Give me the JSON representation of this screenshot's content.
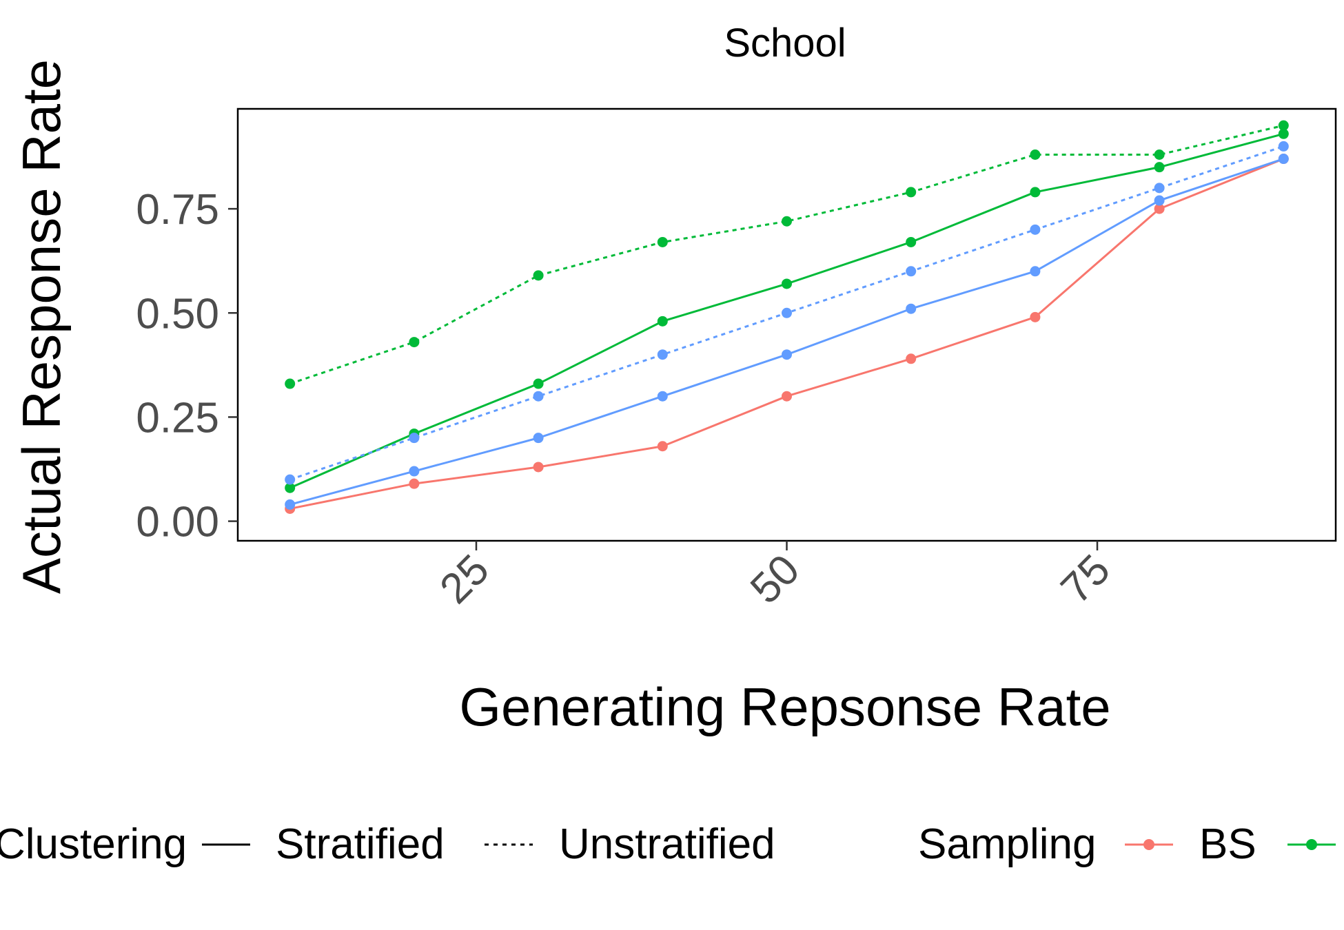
{
  "chart_data": {
    "type": "line",
    "title": "School",
    "xlabel": "Generating Repsonse Rate",
    "ylabel": "Actual Response Rate",
    "x": [
      10,
      20,
      30,
      40,
      50,
      60,
      70,
      80,
      90
    ],
    "xticks": [
      "25",
      "50",
      "75"
    ],
    "xtick_values": [
      25,
      50,
      75
    ],
    "yticks": [
      "0.00",
      "0.25",
      "0.50",
      "0.75"
    ],
    "ytick_values": [
      0,
      0.25,
      0.5,
      0.75
    ],
    "xlim": [
      5.8,
      94.2
    ],
    "ylim": [
      -0.047,
      0.99
    ],
    "grid": false,
    "legend_position": "bottom",
    "colors": {
      "red": "#F8766D",
      "green": "#00BA38",
      "blue": "#619CFF"
    },
    "series": [
      {
        "color": "red",
        "sampling": "BS",
        "clustering": "Stratified",
        "values": [
          0.03,
          0.09,
          0.13,
          0.18,
          0.3,
          0.39,
          0.49,
          0.75,
          0.87
        ]
      },
      {
        "color": "green",
        "clustering": "Stratified",
        "values": [
          0.08,
          0.21,
          0.33,
          0.48,
          0.57,
          0.67,
          0.79,
          0.85,
          0.93
        ]
      },
      {
        "color": "green",
        "clustering": "Unstratified",
        "values": [
          0.33,
          0.43,
          0.59,
          0.67,
          0.72,
          0.79,
          0.88,
          0.88,
          0.95
        ]
      },
      {
        "color": "blue",
        "clustering": "Stratified",
        "values": [
          0.04,
          0.12,
          0.2,
          0.3,
          0.4,
          0.51,
          0.6,
          0.77,
          0.87
        ]
      },
      {
        "color": "blue",
        "clustering": "Unstratified",
        "values": [
          0.1,
          0.2,
          0.3,
          0.4,
          0.5,
          0.6,
          0.7,
          0.8,
          0.9
        ]
      }
    ],
    "legend": {
      "clustering_title": "Clustering",
      "clustering_items": [
        "Stratified",
        "Unstratified"
      ],
      "sampling_title": "Sampling",
      "sampling_items": [
        "BS"
      ]
    }
  }
}
